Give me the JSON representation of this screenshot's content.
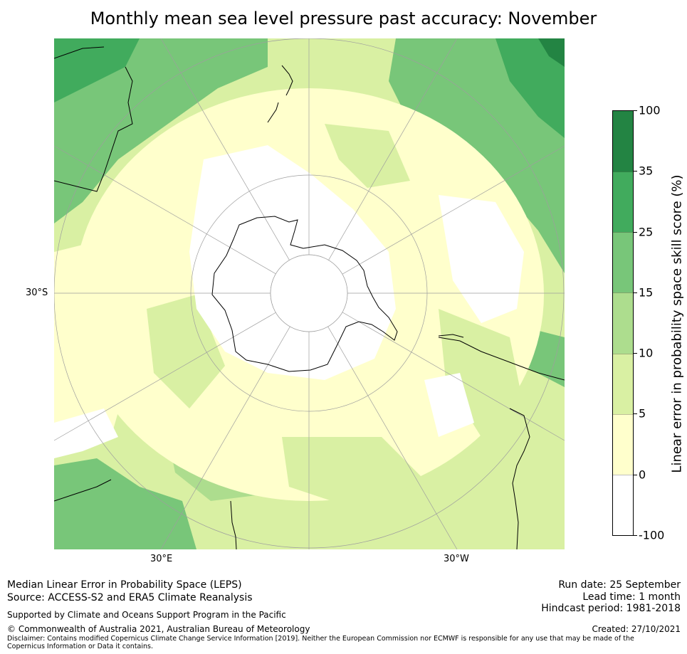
{
  "title": "Monthly mean sea level pressure past accuracy: November",
  "map": {
    "projection": "south-polar-stereographic",
    "lat_label": "30°S",
    "lon_labels": {
      "left": "30°E",
      "right": "30°W"
    },
    "colors": {
      "white": "#ffffff",
      "pale_yellow": "#ffffcc",
      "light_lime": "#d9f0a3",
      "light_green": "#addd8e",
      "medium_green": "#78c679",
      "green": "#41ab5d",
      "dark_green": "#238443",
      "grid": "#9e9e9e",
      "coast": "#000000"
    }
  },
  "colorbar": {
    "title": "Linear error in probability space skill score (%)",
    "ticks": [
      "100",
      "35",
      "25",
      "15",
      "10",
      "5",
      "0",
      "-100"
    ],
    "bins": [
      {
        "range": "35–100",
        "color": "#238443"
      },
      {
        "range": "25–35",
        "color": "#41ab5d"
      },
      {
        "range": "15–25",
        "color": "#78c679"
      },
      {
        "range": "10–15",
        "color": "#addd8e"
      },
      {
        "range": "5–10",
        "color": "#d9f0a3"
      },
      {
        "range": "0–5",
        "color": "#ffffcc"
      },
      {
        "range": "-100–0",
        "color": "#ffffff"
      }
    ]
  },
  "footer": {
    "line1": "Median Linear Error in Probability Space (LEPS)",
    "line2": "Source: ACCESS-S2 and ERA5 Climate Reanalysis",
    "supported": "Supported by Climate and Oceans Support Program in the Pacific",
    "copyright": "© Commonwealth of Australia 2021, Australian Bureau of Meteorology",
    "disclaimer": "Disclaimer: Contains modified Copernicus Climate Change Service Information [2019]. Neither the European Commission nor ECMWF is responsible for any use that may be made of the Copernicus Information or Data it contains.",
    "run_date": "Run date: 25 September",
    "lead_time": "Lead time: 1 month",
    "hindcast": "Hindcast period: 1981-2018",
    "created": "Created: 27/10/2021"
  }
}
